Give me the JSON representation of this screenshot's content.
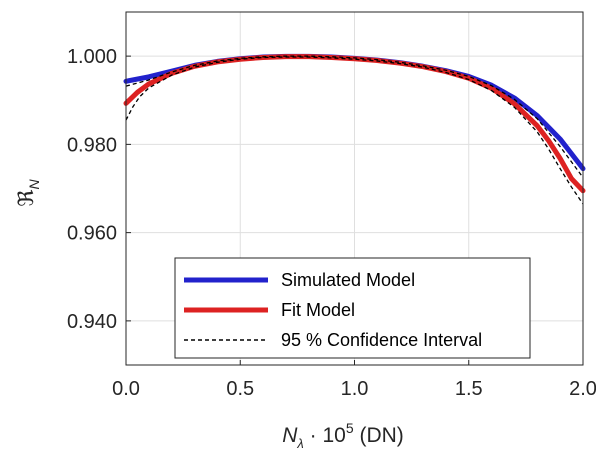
{
  "chart_data": {
    "type": "line",
    "title": "",
    "xlabel": {
      "main": "N",
      "sub": "λ",
      "mid": " · 10",
      "sup": "5",
      "end": " (DN)"
    },
    "ylabel": {
      "main": "ℜ",
      "sub": "N"
    },
    "xlim": [
      0.0,
      2.0
    ],
    "ylim": [
      0.93,
      1.01
    ],
    "xticks": [
      0.0,
      0.5,
      1.0,
      1.5,
      2.0
    ],
    "xtick_labels": [
      "0.0",
      "0.5",
      "1.0",
      "1.5",
      "2.0"
    ],
    "yticks": [
      0.94,
      0.96,
      0.98,
      1.0
    ],
    "ytick_labels": [
      "0.940",
      "0.960",
      "0.980",
      "1.000"
    ],
    "grid": true,
    "legend_position": "bottom-center",
    "series": [
      {
        "name": "Simulated Model",
        "color": "#2222cc",
        "style": "solid",
        "points": [
          [
            0.0,
            0.9943
          ],
          [
            0.1,
            0.9953
          ],
          [
            0.2,
            0.9966
          ],
          [
            0.3,
            0.9979
          ],
          [
            0.4,
            0.9988
          ],
          [
            0.5,
            0.9994
          ],
          [
            0.6,
            0.9998
          ],
          [
            0.7,
            0.99995
          ],
          [
            0.8,
            0.99995
          ],
          [
            0.9,
            0.9998
          ],
          [
            1.0,
            0.9995
          ],
          [
            1.1,
            0.9991
          ],
          [
            1.2,
            0.9985
          ],
          [
            1.3,
            0.9977
          ],
          [
            1.4,
            0.9967
          ],
          [
            1.5,
            0.9954
          ],
          [
            1.6,
            0.9934
          ],
          [
            1.7,
            0.9905
          ],
          [
            1.8,
            0.9865
          ],
          [
            1.9,
            0.9812
          ],
          [
            2.0,
            0.9745
          ]
        ]
      },
      {
        "name": "Fit Model",
        "color": "#dd2222",
        "style": "solid",
        "points": [
          [
            0.0,
            0.9893
          ],
          [
            0.05,
            0.9918
          ],
          [
            0.1,
            0.9937
          ],
          [
            0.2,
            0.9961
          ],
          [
            0.3,
            0.9977
          ],
          [
            0.4,
            0.9987
          ],
          [
            0.5,
            0.9993
          ],
          [
            0.6,
            0.9997
          ],
          [
            0.7,
            0.9999
          ],
          [
            0.8,
            0.9999
          ],
          [
            0.9,
            0.9997
          ],
          [
            1.0,
            0.9994
          ],
          [
            1.1,
            0.999
          ],
          [
            1.2,
            0.9984
          ],
          [
            1.3,
            0.9976
          ],
          [
            1.4,
            0.9965
          ],
          [
            1.5,
            0.995
          ],
          [
            1.6,
            0.9927
          ],
          [
            1.7,
            0.9892
          ],
          [
            1.8,
            0.9842
          ],
          [
            1.85,
            0.9808
          ],
          [
            1.9,
            0.9768
          ],
          [
            1.95,
            0.9722
          ],
          [
            2.0,
            0.9695
          ]
        ]
      },
      {
        "name": "95 % Confidence Interval",
        "color": "#000000",
        "style": "dashed",
        "points": [
          [
            0.0,
            0.9855
          ],
          [
            0.03,
            0.9885
          ],
          [
            0.06,
            0.9908
          ],
          [
            0.1,
            0.9928
          ],
          [
            0.2,
            0.9957
          ],
          [
            0.3,
            0.9975
          ],
          [
            0.4,
            0.9986
          ],
          [
            0.5,
            0.9993
          ],
          [
            0.6,
            0.9997
          ],
          [
            0.7,
            0.9998
          ],
          [
            0.8,
            0.9998
          ],
          [
            0.9,
            0.9996
          ],
          [
            1.0,
            0.9993
          ],
          [
            1.1,
            0.9989
          ],
          [
            1.2,
            0.9983
          ],
          [
            1.3,
            0.9975
          ],
          [
            1.4,
            0.9963
          ],
          [
            1.5,
            0.9947
          ],
          [
            1.6,
            0.9922
          ],
          [
            1.7,
            0.9884
          ],
          [
            1.8,
            0.9828
          ],
          [
            1.85,
            0.9789
          ],
          [
            1.9,
            0.9745
          ],
          [
            1.95,
            0.9703
          ],
          [
            2.0,
            0.9665
          ]
        ]
      },
      {
        "name": "",
        "color": "#000000",
        "style": "dashed",
        "points": [
          [
            0.0,
            0.9932
          ],
          [
            0.1,
            0.9946
          ],
          [
            0.2,
            0.9964
          ],
          [
            0.3,
            0.9979
          ],
          [
            0.4,
            0.9989
          ],
          [
            0.5,
            0.9995
          ],
          [
            0.6,
            0.99985
          ],
          [
            0.7,
            1.0
          ],
          [
            0.8,
            1.0
          ],
          [
            0.9,
            0.99985
          ],
          [
            1.0,
            0.9996
          ],
          [
            1.1,
            0.9992
          ],
          [
            1.2,
            0.9986
          ],
          [
            1.3,
            0.9978
          ],
          [
            1.4,
            0.9968
          ],
          [
            1.5,
            0.9954
          ],
          [
            1.6,
            0.9933
          ],
          [
            1.7,
            0.9902
          ],
          [
            1.8,
            0.9858
          ],
          [
            1.9,
            0.9795
          ],
          [
            2.0,
            0.9725
          ]
        ]
      }
    ]
  }
}
